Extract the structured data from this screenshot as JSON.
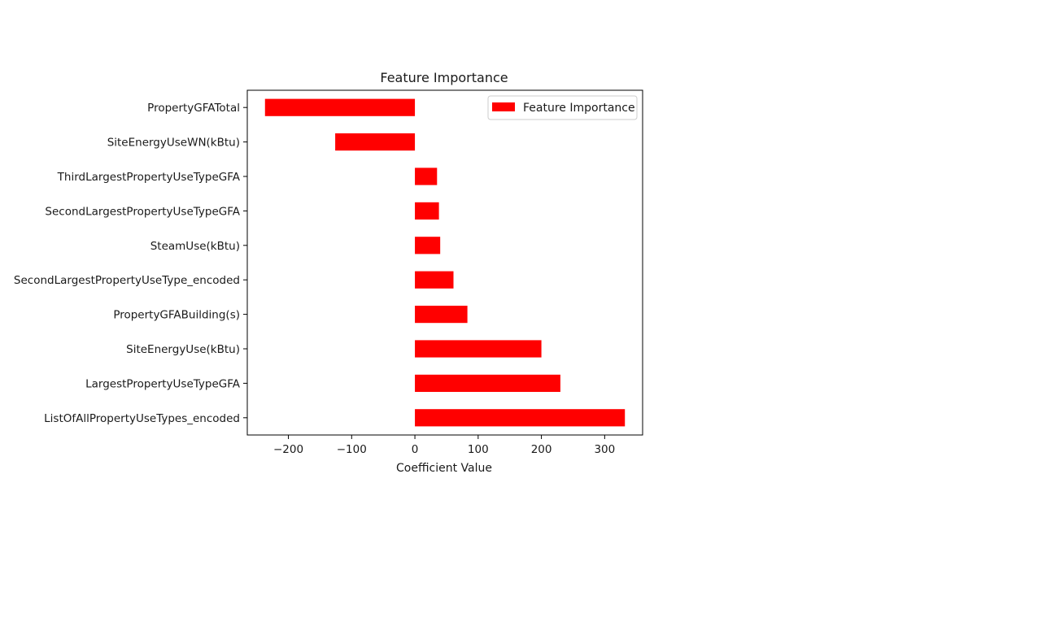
{
  "chart_data": {
    "type": "bar",
    "orientation": "horizontal",
    "title": "Feature Importance",
    "xlabel": "Coefficient Value",
    "ylabel": "",
    "xlim": [
      -265,
      360
    ],
    "xticks": [
      -200,
      -100,
      0,
      100,
      200,
      300
    ],
    "xtick_labels": [
      "−200",
      "−100",
      "0",
      "100",
      "200",
      "300"
    ],
    "grid": false,
    "legend": {
      "placement": "top-right",
      "entries": [
        "Feature Importance"
      ]
    },
    "categories": [
      "PropertyGFATotal",
      "SiteEnergyUseWN(kBtu)",
      "ThirdLargestPropertyUseTypeGFA",
      "SecondLargestPropertyUseTypeGFA",
      "SteamUse(kBtu)",
      "SecondLargestPropertyUseType_encoded",
      "PropertyGFABuilding(s)",
      "SiteEnergyUse(kBtu)",
      "LargestPropertyUseTypeGFA",
      "ListOfAllPropertyUseTypes_encoded"
    ],
    "series": [
      {
        "name": "Feature Importance",
        "color": "#ff0000",
        "values": [
          -237,
          -126,
          35,
          38,
          40,
          61,
          83,
          200,
          230,
          332
        ]
      }
    ]
  }
}
